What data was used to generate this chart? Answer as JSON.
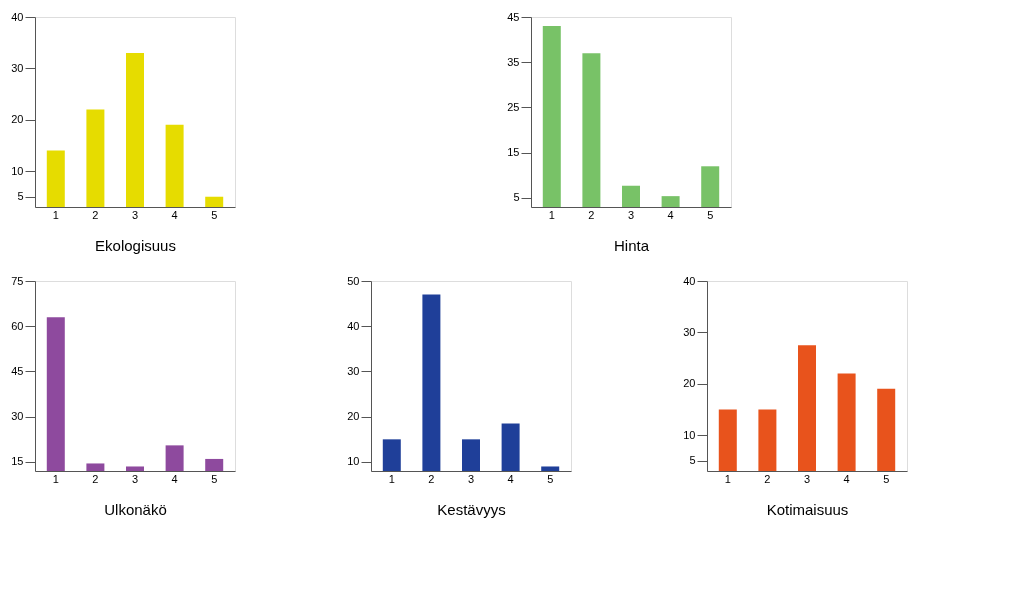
{
  "chart_data": [
    {
      "type": "bar",
      "xlabel": "Ekologisuus",
      "categories": [
        "1",
        "2",
        "3",
        "4",
        "5"
      ],
      "values": [
        14,
        22,
        33,
        19,
        5
      ],
      "color": "#e6dc00",
      "ylim": [
        3,
        40
      ],
      "yticks": [
        5,
        10,
        20,
        30,
        40
      ]
    },
    {
      "type": "bar",
      "xlabel": "Hinta",
      "categories": [
        "1",
        "2",
        "3",
        "4",
        "5"
      ],
      "values": [
        43,
        37,
        7.7,
        5.4,
        12
      ],
      "color": "#78c267",
      "ylim": [
        3,
        45
      ],
      "yticks": [
        5,
        15,
        25,
        35,
        45
      ]
    },
    {
      "type": "bar",
      "xlabel": "Ulkonäkö",
      "categories": [
        "1",
        "2",
        "3",
        "4",
        "5"
      ],
      "values": [
        63,
        14.5,
        13.5,
        20.5,
        16
      ],
      "color": "#8e4a9e",
      "ylim": [
        12,
        75
      ],
      "yticks": [
        15,
        30,
        45,
        60,
        75
      ]
    },
    {
      "type": "bar",
      "xlabel": "Kestävyys",
      "categories": [
        "1",
        "2",
        "3",
        "4",
        "5"
      ],
      "values": [
        15,
        47,
        15,
        18.5,
        9
      ],
      "color": "#1f3f99",
      "ylim": [
        8,
        50
      ],
      "yticks": [
        10,
        20,
        30,
        40,
        50
      ]
    },
    {
      "type": "bar",
      "xlabel": "Kotimaisuus",
      "categories": [
        "1",
        "2",
        "3",
        "4",
        "5"
      ],
      "values": [
        15,
        15,
        27.5,
        22,
        19
      ],
      "color": "#e8531c",
      "ylim": [
        3,
        40
      ],
      "yticks": [
        5,
        10,
        20,
        30,
        40
      ]
    }
  ]
}
